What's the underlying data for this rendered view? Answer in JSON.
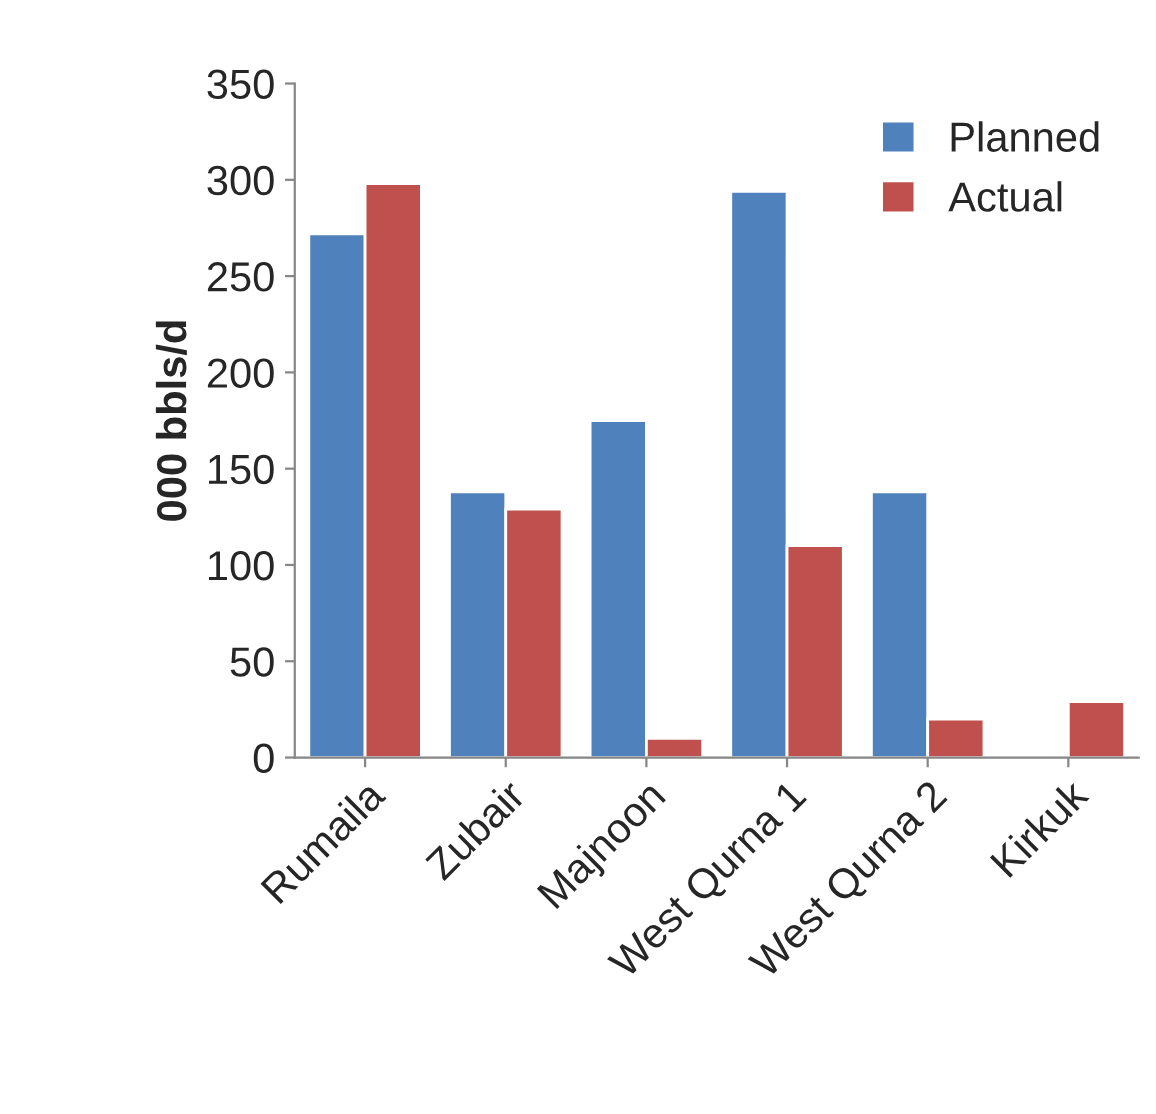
{
  "chart_data": {
    "type": "bar",
    "ylabel": "000 bbls/d",
    "categories": [
      "Rumaila",
      "Zubair",
      "Majnoon",
      "West Qurna 1",
      "West Qurna 2",
      "Kirkuk"
    ],
    "series": [
      {
        "name": "Planned",
        "color": "#4f81bd",
        "values": [
          272,
          138,
          175,
          294,
          138,
          null
        ]
      },
      {
        "name": "Actual",
        "color": "#c0504d",
        "values": [
          298,
          129,
          10,
          110,
          20,
          29
        ]
      }
    ],
    "ylim": [
      0,
      350
    ],
    "yticks": [
      0,
      50,
      100,
      150,
      200,
      250,
      300,
      350
    ],
    "grid": false,
    "legend": "top right"
  }
}
